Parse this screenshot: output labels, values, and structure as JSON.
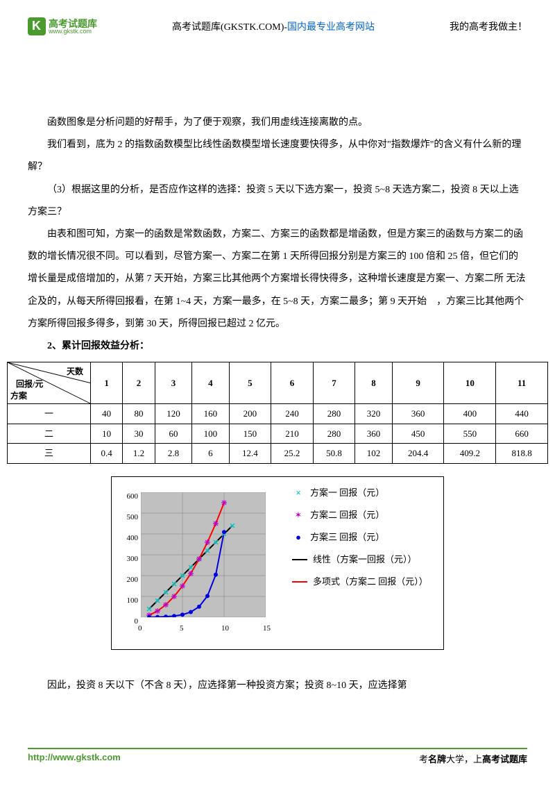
{
  "header": {
    "logo_cn": "高考试题库",
    "logo_en": "www.gkstk.com",
    "center_prefix": "高考试题库(GKSTK.COM)-",
    "center_blue": "国内最专业高考网站",
    "right": "我的高考我做主！"
  },
  "paragraphs": {
    "p1": "函数图象是分析问题的好帮手，为了便于观察，我们用虚线连接离散的点。",
    "p2": "我们看到，底为 2 的指数函数模型比线性函数模型增长速度要快得多，从中你对\"指数爆炸\"的含义有什么新的理解？",
    "p3": "（3）根据这里的分析，是否应作这样的选择：投资 5 天以下选方案一，投资 5~8 天选方案二，投资 8 天以上选方案三？",
    "p4": "由表和图可知，方案一的函数是常数函数，方案二、方案三的函数都是增函数，但是方案三的函数与方案二的函数的增长情况很不同。可以看到，尽管方案一、方案二在第 1 天所得回报分别是方案三的 100 倍和 25 倍，但它们的增长量是成倍增加的，从第 7 天开始，方案三比其他两个方案增长得快得多，这种增长速度是方案一、方案二所 无法企及的，从每天所得回报看，在第 1~4 天，方案一最多，在 5~8 天，方案二最多；第 9 天开始　，方案三比其他两个方案所得回报多得多，到第 30 天，所得回报已超过 2 亿元。",
    "section2": "2、累计回报效益分析：",
    "conclusion": "因此，投资 8 天以下（不含 8 天），应选择第一种投资方案；投资 8~10 天，应选择第"
  },
  "table": {
    "corner_top": "天数",
    "corner_mid": "回报/元",
    "corner_bot": "方案",
    "columns": [
      "1",
      "2",
      "3",
      "4",
      "5",
      "6",
      "7",
      "8",
      "9",
      "10",
      "11"
    ],
    "rows": [
      {
        "label": "一",
        "cells": [
          "40",
          "80",
          "120",
          "160",
          "200",
          "240",
          "280",
          "320",
          "360",
          "400",
          "440"
        ]
      },
      {
        "label": "二",
        "cells": [
          "10",
          "30",
          "60",
          "100",
          "150",
          "210",
          "280",
          "360",
          "450",
          "550",
          "660"
        ]
      },
      {
        "label": "三",
        "cells": [
          "0.4",
          "1.2",
          "2.8",
          "6",
          "12.4",
          "25.2",
          "50.8",
          "102",
          "204.4",
          "409.2",
          "818.8"
        ]
      }
    ]
  },
  "chart": {
    "type": "line",
    "background_color": "#c0c0c0",
    "border_color": "#000000",
    "xlim": [
      0,
      15
    ],
    "ylim": [
      0,
      600
    ],
    "xticks": [
      0,
      5,
      10,
      15
    ],
    "yticks": [
      0,
      100,
      200,
      300,
      400,
      500,
      600
    ],
    "grid_color": "#808080",
    "series": [
      {
        "name": "方案一 回报（元）",
        "color": "#00c8c8",
        "marker": "x",
        "points": [
          [
            1,
            40
          ],
          [
            2,
            80
          ],
          [
            3,
            120
          ],
          [
            4,
            160
          ],
          [
            5,
            200
          ],
          [
            6,
            240
          ],
          [
            7,
            280
          ],
          [
            8,
            320
          ],
          [
            9,
            360
          ],
          [
            10,
            400
          ],
          [
            11,
            440
          ]
        ]
      },
      {
        "name": "方案二 回报（元）",
        "color": "#c000c0",
        "marker": "star",
        "points": [
          [
            1,
            10
          ],
          [
            2,
            30
          ],
          [
            3,
            60
          ],
          [
            4,
            100
          ],
          [
            5,
            150
          ],
          [
            6,
            210
          ],
          [
            7,
            280
          ],
          [
            8,
            360
          ],
          [
            9,
            450
          ],
          [
            10,
            550
          ]
        ]
      },
      {
        "name": "方案三 回报（元）",
        "color": "#0000e0",
        "marker": "dot",
        "points": [
          [
            1,
            0.4
          ],
          [
            2,
            1.2
          ],
          [
            3,
            2.8
          ],
          [
            4,
            6
          ],
          [
            5,
            12.4
          ],
          [
            6,
            25.2
          ],
          [
            7,
            50.8
          ],
          [
            8,
            102
          ],
          [
            9,
            204.4
          ],
          [
            10,
            409.2
          ]
        ]
      }
    ],
    "trendlines": [
      {
        "name": "线性（方案一 回报（元））",
        "color": "#000000",
        "from": [
          1,
          40
        ],
        "to": [
          11,
          440
        ],
        "width": 2
      },
      {
        "name": "多项式（方案二 回报（元））",
        "color": "#ff0000",
        "from": [
          1,
          10
        ],
        "to": [
          10,
          550
        ],
        "width": 2,
        "curve": true
      }
    ],
    "legend": [
      {
        "type": "marker",
        "mark": "×",
        "color": "#00c8c8",
        "label": "方案一 回报（元）"
      },
      {
        "type": "marker",
        "mark": "✶",
        "color": "#c000c0",
        "label": "方案二 回报（元）"
      },
      {
        "type": "marker",
        "mark": "●",
        "color": "#0000e0",
        "label": "方案三 回报（元）"
      },
      {
        "type": "line",
        "color": "#000000",
        "label": "线性（方案一回报（元））"
      },
      {
        "type": "line",
        "color": "#ff0000",
        "label": "多项式（方案二 回报（元））"
      }
    ]
  },
  "footer": {
    "url": "http://www.gkstk.com",
    "slogan_pre": "考",
    "slogan_b1": "名牌",
    "slogan_mid": "大学，上",
    "slogan_b2": "高考试题库"
  }
}
